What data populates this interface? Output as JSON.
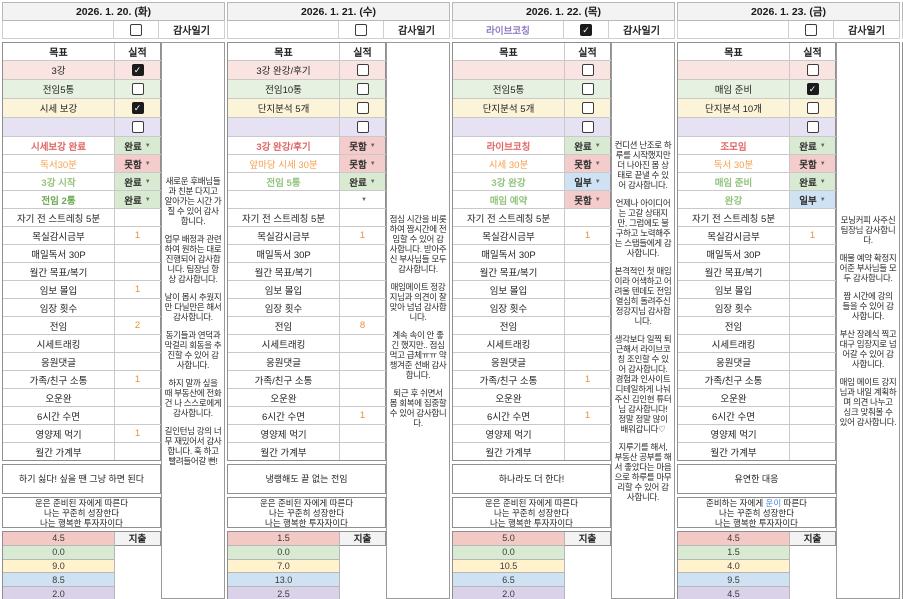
{
  "colors": {
    "accent_red": "#e06666",
    "accent_orange": "#f6a04c",
    "accent_green": "#93c47d",
    "accent_purple": "#8e7cc3",
    "status_done_bg": "#d9ead3",
    "status_fail_bg": "#f4cccc",
    "status_partial_bg": "#cfe2f3",
    "row_pink": "#f9e4e2",
    "row_green": "#e7f1e1",
    "row_yellow": "#fcf4d8",
    "row_purple": "#e6e2f4"
  },
  "status_class_map": {
    "완료": "done",
    "못함": "fail",
    "일부": "partial",
    "": "none"
  },
  "days": [
    {
      "date": "2026. 1. 20. (화)",
      "special_label": "",
      "special_checked": false,
      "diary_label": "감사일기",
      "goal_header": "목표",
      "actual_header": "실적",
      "checkbox_rows": [
        {
          "label": "3강",
          "checked": true
        },
        {
          "label": "전임5통",
          "checked": false
        },
        {
          "label": "시세 보강",
          "checked": true
        },
        {
          "label": "",
          "checked": false
        }
      ],
      "goal_rows": [
        {
          "label": "시세보강 완료",
          "color": "red",
          "status": "완료"
        },
        {
          "label": "독서30분",
          "color": "orange",
          "status": "못함"
        },
        {
          "label": "3강 시작",
          "color": "green",
          "status": "완료"
        },
        {
          "label": "전임 2통",
          "color": "green2",
          "status": "완료"
        }
      ],
      "habits": [
        {
          "label": "자기 전 스트레칭 5분",
          "value": ""
        },
        {
          "label": "목실감시금부",
          "value": "1"
        },
        {
          "label": "매일독서 30P",
          "value": ""
        },
        {
          "label": "월간 목표/복기",
          "value": ""
        },
        {
          "label": "임보 몰입",
          "value": "1"
        },
        {
          "label": "임장 횟수",
          "value": ""
        },
        {
          "label": "전임",
          "value": "2"
        },
        {
          "label": "시세트래킹",
          "value": ""
        },
        {
          "label": "응원댓글",
          "value": ""
        },
        {
          "label": "가족/친구 소통",
          "value": "1"
        },
        {
          "label": "오운완",
          "value": ""
        },
        {
          "label": "6시간 수면",
          "value": ""
        },
        {
          "label": "영양제 먹기",
          "value": "1"
        },
        {
          "label": "월간 가계부",
          "value": ""
        }
      ],
      "quote": "하기 싫다! 싶을 땐 그냥 하면 된다",
      "affirmation": [
        "운은 준비된 자에게 따른다",
        "나는 꾸준히 성장한다",
        "나는 행복한 투자자이다"
      ],
      "affirm_highlight": "",
      "expense_label": "지출",
      "expenses": [
        "4.5",
        "0.0",
        "9.0",
        "8.5",
        "2.0"
      ],
      "diary": [
        "새로운 후배님들과 친분 다지고 알아가는 시간 가질 수 있어 감사합니다.",
        "업무 배정과 관련하여 원하는 대로 진행되어 감사합니다. 팀장님 항상 감사합니다.",
        "날이 몹시 추웠지만 다닐만은 해서 감사합니다.",
        "동기들과 연덕과 막걸리 회동을 추진할 수 있어 감사합니다.",
        "하지 말까 싶을 때 부동산에 전화 건 나 스스로에게 감사합니다.",
        "길인턴님 강의 너무 재밌어서 감사합니다. 훅 하고 빨려들어갈 뻔!"
      ]
    },
    {
      "date": "2026. 1. 21. (수)",
      "special_label": "",
      "special_checked": false,
      "diary_label": "감사일기",
      "goal_header": "목표",
      "actual_header": "실적",
      "checkbox_rows": [
        {
          "label": "3강 완강/후기",
          "checked": false
        },
        {
          "label": "전임10통",
          "checked": false
        },
        {
          "label": "단지분석 5개",
          "checked": false
        },
        {
          "label": "",
          "checked": false
        }
      ],
      "goal_rows": [
        {
          "label": "3강 완강/후기",
          "color": "red",
          "status": "못함"
        },
        {
          "label": "앞마당 시세 30분",
          "color": "orange",
          "status": "못함"
        },
        {
          "label": "전임 5통",
          "color": "green",
          "status": "완료"
        },
        {
          "label": "",
          "color": "none",
          "status": ""
        }
      ],
      "habits": [
        {
          "label": "자기 전 스트레칭 5분",
          "value": ""
        },
        {
          "label": "목실감시금부",
          "value": "1"
        },
        {
          "label": "매일독서 30P",
          "value": ""
        },
        {
          "label": "월간 목표/복기",
          "value": ""
        },
        {
          "label": "임보 몰입",
          "value": ""
        },
        {
          "label": "임장 횟수",
          "value": ""
        },
        {
          "label": "전임",
          "value": "8"
        },
        {
          "label": "시세트래킹",
          "value": ""
        },
        {
          "label": "응원댓글",
          "value": ""
        },
        {
          "label": "가족/친구 소통",
          "value": ""
        },
        {
          "label": "오운완",
          "value": ""
        },
        {
          "label": "6시간 수면",
          "value": "1"
        },
        {
          "label": "영양제 먹기",
          "value": ""
        },
        {
          "label": "월간 가계부",
          "value": ""
        }
      ],
      "quote": "냉랭해도 끝 없는 전임",
      "affirmation": [
        "운은 준비된 자에게 따른다",
        "나는 꾸준히 성장한다",
        "나는 행복한 투자자이다"
      ],
      "affirm_highlight": "",
      "expense_label": "지출",
      "expenses": [
        "1.5",
        "0.0",
        "7.0",
        "13.0",
        "2.5"
      ],
      "diary": [
        "점심 시간을 비롯하여 짬시간에 전임할 수 있어 감사합니다. 받아주신 부사님들 모두 감사합니다.",
        "매임메이트 정강지님과 의견이 잘 맞아 넘넘 감사합니다.",
        "계속 속이 안 좋긴 했지만.. 점심 먹고 급체ㅠㅠ 약 챙겨준 선배 감사합니다.",
        "퇴근 후 쉬면서 몸 회복에 집중할 수 있어 감사합니다."
      ]
    },
    {
      "date": "2026. 1. 22. (목)",
      "special_label": "라이브코칭",
      "special_checked": true,
      "diary_label": "감사일기",
      "goal_header": "목표",
      "actual_header": "실적",
      "checkbox_rows": [
        {
          "label": "",
          "checked": false
        },
        {
          "label": "전임5통",
          "checked": false
        },
        {
          "label": "단지분석 5개",
          "checked": false
        },
        {
          "label": "",
          "checked": false
        }
      ],
      "goal_rows": [
        {
          "label": "라이브코칭",
          "color": "red",
          "status": "완료"
        },
        {
          "label": "시세 30분",
          "color": "orange",
          "status": "못함"
        },
        {
          "label": "3강 완강",
          "color": "green",
          "status": "일부"
        },
        {
          "label": "매임 예약",
          "color": "green",
          "status": "못함"
        }
      ],
      "habits": [
        {
          "label": "자기 전 스트레칭 5분",
          "value": ""
        },
        {
          "label": "목실감시금부",
          "value": "1"
        },
        {
          "label": "매일독서 30P",
          "value": ""
        },
        {
          "label": "월간 목표/복기",
          "value": ""
        },
        {
          "label": "임보 몰입",
          "value": ""
        },
        {
          "label": "임장 횟수",
          "value": ""
        },
        {
          "label": "전임",
          "value": ""
        },
        {
          "label": "시세트래킹",
          "value": ""
        },
        {
          "label": "응원댓글",
          "value": ""
        },
        {
          "label": "가족/친구 소통",
          "value": "1"
        },
        {
          "label": "오운완",
          "value": ""
        },
        {
          "label": "6시간 수면",
          "value": "1"
        },
        {
          "label": "영양제 먹기",
          "value": ""
        },
        {
          "label": "월간 가계부",
          "value": ""
        }
      ],
      "quote": "하나라도 더 한다!",
      "affirmation": [
        "운은 준비된 자에게 따른다",
        "나는 꾸준히 성장한다",
        "나는 행복한 투자자이다"
      ],
      "affirm_highlight": "",
      "expense_label": "지출",
      "expenses": [
        "5.0",
        "0.0",
        "10.5",
        "6.5",
        "2.0"
      ],
      "diary": [
        "컨디션 난조로 하루를 시작했지만 더 나아진 몸 상태로 끝낼 수 있어 감사합니다.",
        "언제나 아이디어는 고갈 상태지만, 그럼에도 불구하고 노력해주는 스탭들에게 감사합니다.",
        "본격적인 첫 매임이라 어색하고 어려울 텐데도 전임 열심히 돌려주신 정강지님 감사합니다.",
        "생각보다 일찍 퇴근해서 라이브코칭 조인할 수 있어 감사합니다. 경험과 인사이트 디테일하게 나눠주신 김인현 튜터님 감사합니다! 정말 정말 많이 배워갑니다♡",
        "지루기를 해서, 부동산 공부를 해서 좋았다는 마음으로 하루를 마무리할 수 있어 감사합니다."
      ]
    },
    {
      "date": "2026. 1. 23. (금)",
      "special_label": "",
      "special_checked": false,
      "diary_label": "감사일기",
      "goal_header": "목표",
      "actual_header": "실적",
      "checkbox_rows": [
        {
          "label": "",
          "checked": false
        },
        {
          "label": "매임 준비",
          "checked": true
        },
        {
          "label": "단지분석 10개",
          "checked": false
        },
        {
          "label": "",
          "checked": false
        }
      ],
      "goal_rows": [
        {
          "label": "조모임",
          "color": "red",
          "status": "완료"
        },
        {
          "label": "독서 30분",
          "color": "orange",
          "status": "못함"
        },
        {
          "label": "매임 준비",
          "color": "green",
          "status": "완료"
        },
        {
          "label": "완강",
          "color": "green",
          "status": "일부"
        }
      ],
      "habits": [
        {
          "label": "자기 전 스트레칭 5분",
          "value": ""
        },
        {
          "label": "목실감시금부",
          "value": "1"
        },
        {
          "label": "매일독서 30P",
          "value": ""
        },
        {
          "label": "월간 목표/복기",
          "value": ""
        },
        {
          "label": "임보 몰입",
          "value": ""
        },
        {
          "label": "임장 횟수",
          "value": ""
        },
        {
          "label": "전임",
          "value": ""
        },
        {
          "label": "시세트래킹",
          "value": ""
        },
        {
          "label": "응원댓글",
          "value": ""
        },
        {
          "label": "가족/친구 소통",
          "value": ""
        },
        {
          "label": "오운완",
          "value": ""
        },
        {
          "label": "6시간 수면",
          "value": ""
        },
        {
          "label": "영양제 먹기",
          "value": ""
        },
        {
          "label": "월간 가계부",
          "value": ""
        }
      ],
      "quote": "유연한 대응",
      "affirmation": [
        "준비하는 자에게 운이 따른다",
        "나는 꾸준히 성장한다",
        "나는 행복한 투자자이다"
      ],
      "affirm_highlight": "운이",
      "expense_label": "지출",
      "expenses": [
        "4.5",
        "1.5",
        "4.0",
        "9.5",
        "4.5"
      ],
      "diary": [
        "모닝커피 사주신 팀장님 감사합니다.",
        "매물 예약 확정지어준 부사님들 모두 감사합니다.",
        "짬 시간에 강의 들을 수 있어 감사합니다.",
        "부산 장례식 찍고 대구 임장지로 넘어갈 수 있어 감사합니다.",
        "매임 메이트 강지님과 내일 계획하며 의견 나누고 싱크 맞춰볼 수 있어 감사합니다."
      ]
    }
  ]
}
